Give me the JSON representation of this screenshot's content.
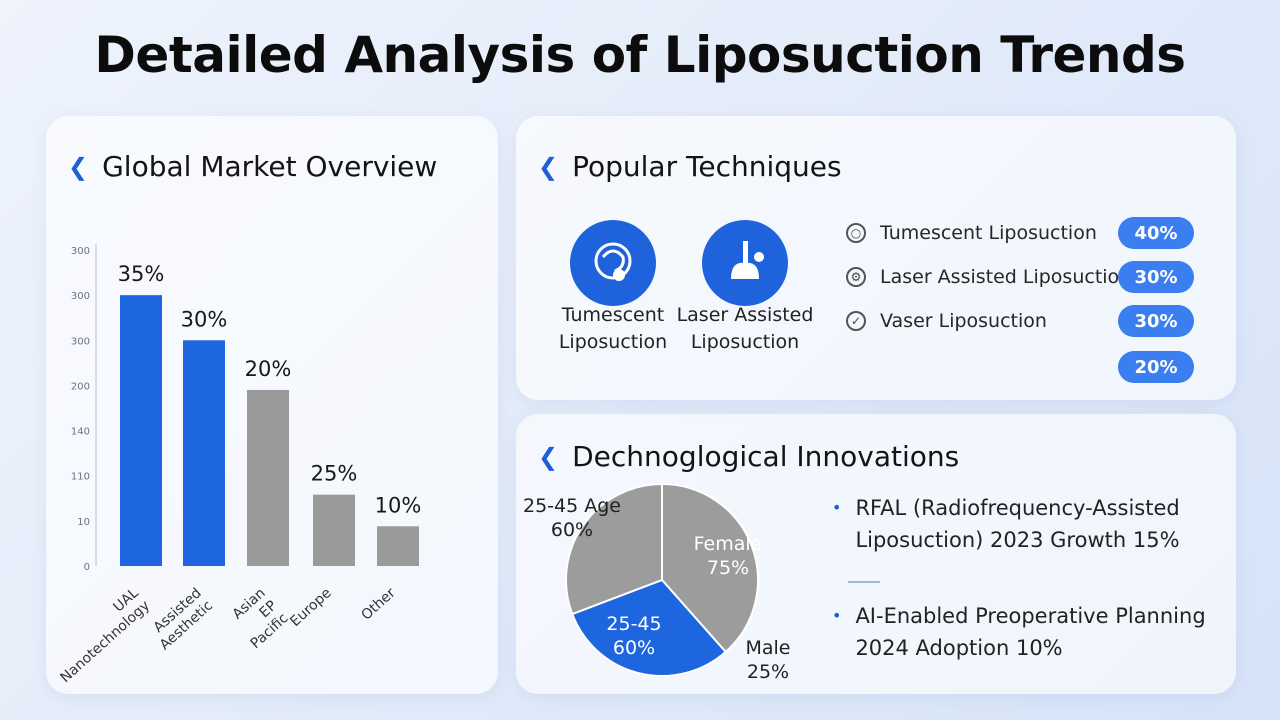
{
  "title": "Detailed Analysis of Liposuction Trends",
  "colors": {
    "accent_blue": "#1f63dc",
    "bar_blue": "#1e66e0",
    "bar_gray": "#9a9a9a",
    "pie_gray": "#9c9c9c",
    "pill_blue": "#3a7ef0"
  },
  "market": {
    "heading": "Global Market Overview",
    "chart_data": {
      "type": "bar",
      "y_ticks": [
        "0",
        "10",
        "110",
        "140",
        "200",
        "300",
        "300",
        "300"
      ],
      "ylim": [
        0,
        350
      ],
      "bars": [
        {
          "label": "35%",
          "value": 300,
          "category": "UAL Nanotechnology",
          "color": "#1e66e0"
        },
        {
          "label": "30%",
          "value": 250,
          "category": "Assisted Aesthetic",
          "color": "#1e66e0"
        },
        {
          "label": "20%",
          "value": 195,
          "category": "Asian EP Pacific",
          "color": "#9a9a9a"
        },
        {
          "label": "25%",
          "value": 79,
          "category": "Europe",
          "color": "#9a9a9a"
        },
        {
          "label": "10%",
          "value": 44,
          "category": "Other",
          "color": "#9a9a9a"
        }
      ],
      "grid": false
    }
  },
  "techniques": {
    "heading": "Popular Techniques",
    "featured": [
      {
        "line1": "Tumescent",
        "line2": "Liposuction",
        "icon": "tumescent-icon"
      },
      {
        "line1": "Laser Assisted",
        "line2": "Liposuction",
        "icon": "laser-icon"
      }
    ],
    "list": [
      {
        "label": "Tumescent Liposuction",
        "icon": "target-icon"
      },
      {
        "label": "Laser Assisted Liposuction",
        "icon": "gear-icon"
      },
      {
        "label": "Vaser Liposuction",
        "icon": "check-icon"
      }
    ],
    "pills": [
      "40%",
      "30%",
      "30%",
      "20%"
    ]
  },
  "innovations": {
    "heading": "Dechnoglogical Innovations",
    "chart_data": {
      "type": "pie",
      "slices": [
        {
          "label": "Female",
          "value": 75,
          "text": "75%",
          "color": "#9c9c9c"
        },
        {
          "label": "25-45",
          "value": 60,
          "text": "60%",
          "color": "#1e66e0"
        },
        {
          "label": "25-45 Age",
          "value": 60,
          "text": "60%",
          "color": "#9c9c9c"
        }
      ],
      "outside_label": {
        "line1": "Male",
        "line2": "25%"
      }
    },
    "bullets": [
      {
        "line1": "RFAL (Radiofrequency-Assisted",
        "line2": "Liposuction) 2023 Growth 15%"
      },
      {
        "line1": "AI-Enabled Preoperative Planning",
        "line2": "2024 Adoption 10%"
      }
    ]
  }
}
